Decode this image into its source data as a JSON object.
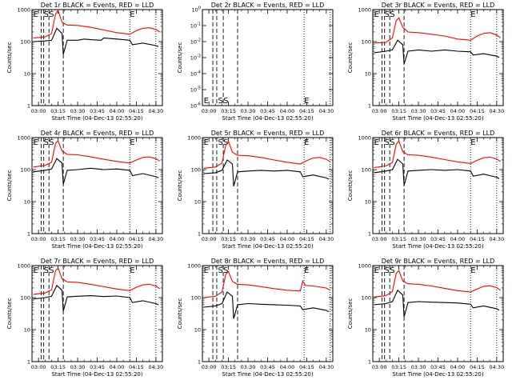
{
  "colors": {
    "events": "#000000",
    "lld": "#ff0000",
    "background": "#ffffff"
  },
  "xlabel": "Start Time (04-Dec-13 02:55:20)",
  "ylabel": "Counts/sec",
  "x_ticks": [
    "03:00",
    "03:15",
    "03:30",
    "03:45",
    "04:00",
    "04:15",
    "04:30"
  ],
  "y_ticks_counts": [
    "1",
    "10",
    "100",
    "1000"
  ],
  "y_ticks_det2": [
    "10^0",
    "10^-1",
    "10^-2",
    "10^-3",
    "10^-4",
    "10^-5",
    "10^-6"
  ],
  "chart_data": [
    {
      "type": "line",
      "title": "Det 1r BLACK = Events, RED = LLD",
      "ylim": [
        1,
        1000
      ],
      "yscale": "log",
      "xlim": [
        "02:55",
        "04:35"
      ],
      "event_markers": [
        {
          "label": "E",
          "x": "02:56"
        },
        {
          "label": "S",
          "x": "03:04"
        },
        {
          "label": "S",
          "x": "03:08"
        },
        {
          "label": "E",
          "x": "04:10"
        }
      ],
      "dashed_lines": [
        "03:02",
        "03:04",
        "03:08",
        "03:19"
      ],
      "dotted_lines": [
        "04:10",
        "04:30"
      ],
      "series": [
        {
          "name": "Events",
          "x": [
            "02:56",
            "03:05",
            "03:10",
            "03:14",
            "03:18",
            "03:19",
            "03:22",
            "03:30",
            "03:35",
            "03:40",
            "03:48",
            "03:50",
            "04:00",
            "04:10",
            "04:12",
            "04:20",
            "04:30",
            "04:32"
          ],
          "values": [
            100,
            105,
            110,
            260,
            180,
            40,
            110,
            110,
            120,
            115,
            110,
            130,
            120,
            110,
            80,
            90,
            75,
            70
          ]
        },
        {
          "name": "LLD",
          "x": [
            "02:56",
            "03:05",
            "03:10",
            "03:13",
            "03:15",
            "03:18",
            "03:22",
            "03:30",
            "03:40",
            "03:50",
            "04:00",
            "04:10",
            "04:15",
            "04:20",
            "04:25",
            "04:30",
            "04:33"
          ],
          "values": [
            130,
            140,
            180,
            700,
            950,
            400,
            330,
            320,
            280,
            230,
            190,
            170,
            220,
            260,
            270,
            240,
            200
          ]
        }
      ]
    },
    {
      "type": "line",
      "title": "Det 2r BLACK = Events, RED = LLD",
      "ylim": [
        1e-06,
        1
      ],
      "yscale": "log",
      "xlim": [
        "02:55",
        "04:35"
      ],
      "event_markers": [
        {
          "label": "E",
          "x": "02:56"
        },
        {
          "label": "S",
          "x": "03:07"
        },
        {
          "label": "S",
          "x": "03:11"
        },
        {
          "label": "E",
          "x": "04:13"
        }
      ],
      "dashed_lines": [
        "03:03",
        "03:06",
        "03:11",
        "03:22"
      ],
      "dotted_lines": [
        "04:13",
        "04:33"
      ],
      "series": []
    },
    {
      "type": "line",
      "title": "Det 3r BLACK = Events, RED = LLD",
      "ylim": [
        1,
        1000
      ],
      "yscale": "log",
      "xlim": [
        "02:55",
        "04:35"
      ],
      "event_markers": [
        {
          "label": "E",
          "x": "02:56"
        },
        {
          "label": "S",
          "x": "03:04"
        },
        {
          "label": "S",
          "x": "03:08"
        },
        {
          "label": "E",
          "x": "04:10"
        }
      ],
      "dashed_lines": [
        "03:02",
        "03:04",
        "03:08",
        "03:19"
      ],
      "dotted_lines": [
        "04:10",
        "04:30"
      ],
      "series": [
        {
          "name": "Events",
          "x": [
            "02:56",
            "03:05",
            "03:10",
            "03:14",
            "03:18",
            "03:19",
            "03:22",
            "03:30",
            "03:40",
            "03:50",
            "04:00",
            "04:10",
            "04:12",
            "04:20",
            "04:30",
            "04:32"
          ],
          "values": [
            45,
            50,
            55,
            110,
            80,
            20,
            50,
            55,
            50,
            55,
            50,
            48,
            38,
            42,
            35,
            32
          ]
        },
        {
          "name": "LLD",
          "x": [
            "02:56",
            "03:05",
            "03:10",
            "03:13",
            "03:15",
            "03:18",
            "03:22",
            "03:30",
            "03:40",
            "03:50",
            "04:00",
            "04:10",
            "04:15",
            "04:20",
            "04:25",
            "04:30",
            "04:33"
          ],
          "values": [
            90,
            95,
            130,
            450,
            550,
            280,
            200,
            190,
            170,
            150,
            120,
            110,
            150,
            180,
            190,
            160,
            130
          ]
        }
      ]
    },
    {
      "type": "line",
      "title": "Det 4r BLACK = Events, RED = LLD",
      "ylim": [
        1,
        1000
      ],
      "yscale": "log",
      "xlim": [
        "02:55",
        "04:35"
      ],
      "event_markers": [
        {
          "label": "E",
          "x": "02:56"
        },
        {
          "label": "S",
          "x": "03:04"
        },
        {
          "label": "S",
          "x": "03:08"
        },
        {
          "label": "E",
          "x": "04:10"
        }
      ],
      "dashed_lines": [
        "03:02",
        "03:04",
        "03:08",
        "03:19"
      ],
      "dotted_lines": [
        "04:10",
        "04:30"
      ],
      "series": [
        {
          "name": "Events",
          "x": [
            "02:56",
            "03:05",
            "03:10",
            "03:14",
            "03:18",
            "03:19",
            "03:22",
            "03:30",
            "03:40",
            "03:50",
            "04:00",
            "04:10",
            "04:12",
            "04:20",
            "04:30",
            "04:32"
          ],
          "values": [
            85,
            95,
            105,
            220,
            160,
            35,
            95,
            100,
            110,
            100,
            105,
            95,
            65,
            75,
            60,
            55
          ]
        },
        {
          "name": "LLD",
          "x": [
            "02:56",
            "03:05",
            "03:10",
            "03:13",
            "03:15",
            "03:18",
            "03:22",
            "03:30",
            "03:40",
            "03:50",
            "04:00",
            "04:10",
            "04:15",
            "04:20",
            "04:25",
            "04:30",
            "04:33"
          ],
          "values": [
            120,
            135,
            170,
            650,
            800,
            380,
            300,
            290,
            250,
            210,
            180,
            160,
            200,
            240,
            250,
            220,
            185
          ]
        }
      ]
    },
    {
      "type": "line",
      "title": "Det 5r BLACK = Events, RED = LLD",
      "ylim": [
        1,
        1000
      ],
      "yscale": "log",
      "xlim": [
        "02:55",
        "04:35"
      ],
      "event_markers": [
        {
          "label": "E",
          "x": "02:56"
        },
        {
          "label": "S",
          "x": "03:07"
        },
        {
          "label": "S",
          "x": "03:11"
        },
        {
          "label": "E",
          "x": "04:13"
        }
      ],
      "dashed_lines": [
        "03:03",
        "03:06",
        "03:11",
        "03:22"
      ],
      "dotted_lines": [
        "04:13",
        "04:33"
      ],
      "series": [
        {
          "name": "Events",
          "x": [
            "02:56",
            "03:05",
            "03:10",
            "03:14",
            "03:18",
            "03:19",
            "03:22",
            "03:30",
            "03:40",
            "03:50",
            "04:00",
            "04:10",
            "04:12",
            "04:20",
            "04:30",
            "04:32"
          ],
          "values": [
            75,
            80,
            95,
            200,
            150,
            30,
            85,
            90,
            95,
            90,
            95,
            85,
            60,
            68,
            55,
            50
          ]
        },
        {
          "name": "LLD",
          "x": [
            "02:56",
            "03:05",
            "03:10",
            "03:13",
            "03:15",
            "03:18",
            "03:22",
            "03:30",
            "03:40",
            "03:50",
            "04:00",
            "04:10",
            "04:15",
            "04:20",
            "04:25",
            "04:30",
            "04:33"
          ],
          "values": [
            110,
            120,
            160,
            600,
            750,
            350,
            280,
            270,
            240,
            200,
            170,
            150,
            190,
            230,
            240,
            210,
            175
          ]
        }
      ]
    },
    {
      "type": "line",
      "title": "Det 6r BLACK = Events, RED = LLD",
      "ylim": [
        1,
        1000
      ],
      "yscale": "log",
      "xlim": [
        "02:55",
        "04:35"
      ],
      "event_markers": [
        {
          "label": "E",
          "x": "02:56"
        },
        {
          "label": "S",
          "x": "03:04"
        },
        {
          "label": "S",
          "x": "03:08"
        },
        {
          "label": "E",
          "x": "04:10"
        }
      ],
      "dashed_lines": [
        "03:02",
        "03:04",
        "03:08",
        "03:19"
      ],
      "dotted_lines": [
        "04:10",
        "04:30"
      ],
      "series": [
        {
          "name": "Events",
          "x": [
            "02:56",
            "03:05",
            "03:10",
            "03:14",
            "03:18",
            "03:19",
            "03:22",
            "03:30",
            "03:40",
            "03:50",
            "04:00",
            "04:10",
            "04:12",
            "04:20",
            "04:30",
            "04:32"
          ],
          "values": [
            80,
            90,
            100,
            210,
            150,
            32,
            90,
            95,
            100,
            95,
            100,
            90,
            62,
            72,
            58,
            52
          ]
        },
        {
          "name": "LLD",
          "x": [
            "02:56",
            "03:05",
            "03:10",
            "03:13",
            "03:15",
            "03:18",
            "03:22",
            "03:30",
            "03:40",
            "03:50",
            "04:00",
            "04:10",
            "04:15",
            "04:20",
            "04:25",
            "04:30",
            "04:33"
          ],
          "values": [
            115,
            130,
            165,
            620,
            780,
            360,
            290,
            280,
            245,
            205,
            175,
            155,
            195,
            235,
            245,
            215,
            180
          ]
        }
      ]
    },
    {
      "type": "line",
      "title": "Det 7r BLACK = Events, RED = LLD",
      "ylim": [
        1,
        1000
      ],
      "yscale": "log",
      "xlim": [
        "02:55",
        "04:35"
      ],
      "event_markers": [
        {
          "label": "E",
          "x": "02:56"
        },
        {
          "label": "S",
          "x": "03:04"
        },
        {
          "label": "S",
          "x": "03:08"
        },
        {
          "label": "E",
          "x": "04:10"
        }
      ],
      "dashed_lines": [
        "03:02",
        "03:04",
        "03:08",
        "03:19"
      ],
      "dotted_lines": [
        "04:10",
        "04:30"
      ],
      "series": [
        {
          "name": "Events",
          "x": [
            "02:56",
            "03:05",
            "03:10",
            "03:14",
            "03:18",
            "03:19",
            "03:22",
            "03:30",
            "03:40",
            "03:50",
            "04:00",
            "04:10",
            "04:12",
            "04:20",
            "04:30",
            "04:32"
          ],
          "values": [
            90,
            100,
            110,
            240,
            170,
            38,
            105,
            110,
            115,
            108,
            112,
            100,
            70,
            80,
            65,
            60
          ]
        },
        {
          "name": "LLD",
          "x": [
            "02:56",
            "03:05",
            "03:10",
            "03:13",
            "03:15",
            "03:18",
            "03:22",
            "03:30",
            "03:40",
            "03:50",
            "04:00",
            "04:10",
            "04:15",
            "04:20",
            "04:25",
            "04:30",
            "04:33"
          ],
          "values": [
            125,
            140,
            175,
            680,
            850,
            390,
            310,
            300,
            260,
            220,
            185,
            165,
            210,
            250,
            260,
            230,
            190
          ]
        }
      ]
    },
    {
      "type": "line",
      "title": "Det 8r BLACK = Events, RED = LLD",
      "ylim": [
        1,
        1000
      ],
      "yscale": "log",
      "xlim": [
        "02:55",
        "04:35"
      ],
      "event_markers": [
        {
          "label": "E",
          "x": "02:56"
        },
        {
          "label": "S",
          "x": "03:07"
        },
        {
          "label": "S",
          "x": "03:11"
        },
        {
          "label": "E",
          "x": "04:13"
        }
      ],
      "dashed_lines": [
        "03:03",
        "03:06",
        "03:11",
        "03:22"
      ],
      "dotted_lines": [
        "04:13",
        "04:33"
      ],
      "series": [
        {
          "name": "Events",
          "x": [
            "02:56",
            "03:05",
            "03:10",
            "03:14",
            "03:18",
            "03:19",
            "03:22",
            "03:30",
            "03:40",
            "03:50",
            "04:00",
            "04:10",
            "04:12",
            "04:20",
            "04:30",
            "04:32"
          ],
          "values": [
            50,
            55,
            65,
            150,
            110,
            22,
            60,
            65,
            62,
            60,
            58,
            55,
            42,
            48,
            40,
            36
          ]
        },
        {
          "name": "LLD",
          "x": [
            "02:56",
            "03:05",
            "03:10",
            "03:13",
            "03:15",
            "03:18",
            "03:22",
            "03:30",
            "03:40",
            "03:50",
            "04:00",
            "04:10",
            "04:12",
            "04:14",
            "04:20",
            "04:30",
            "04:33"
          ],
          "values": [
            100,
            110,
            150,
            550,
            650,
            320,
            260,
            250,
            220,
            190,
            170,
            160,
            330,
            240,
            230,
            200,
            170
          ]
        }
      ]
    },
    {
      "type": "line",
      "title": "Det 9r BLACK = Events, RED = LLD",
      "ylim": [
        1,
        1000
      ],
      "yscale": "log",
      "xlim": [
        "02:55",
        "04:35"
      ],
      "event_markers": [
        {
          "label": "E",
          "x": "02:56"
        },
        {
          "label": "S",
          "x": "03:04"
        },
        {
          "label": "S",
          "x": "03:08"
        },
        {
          "label": "E",
          "x": "04:10"
        }
      ],
      "dashed_lines": [
        "03:02",
        "03:04",
        "03:08",
        "03:19"
      ],
      "dotted_lines": [
        "04:10",
        "04:30"
      ],
      "series": [
        {
          "name": "Events",
          "x": [
            "02:56",
            "03:05",
            "03:10",
            "03:14",
            "03:18",
            "03:19",
            "03:22",
            "03:30",
            "03:40",
            "03:50",
            "04:00",
            "04:10",
            "04:12",
            "04:20",
            "04:30",
            "04:32"
          ],
          "values": [
            60,
            65,
            75,
            170,
            120,
            25,
            70,
            75,
            72,
            70,
            68,
            62,
            48,
            55,
            45,
            40
          ]
        },
        {
          "name": "LLD",
          "x": [
            "02:56",
            "03:05",
            "03:10",
            "03:13",
            "03:15",
            "03:18",
            "03:22",
            "03:30",
            "03:40",
            "03:50",
            "04:00",
            "04:10",
            "04:15",
            "04:20",
            "04:25",
            "04:30",
            "04:33"
          ],
          "values": [
            105,
            115,
            155,
            580,
            700,
            330,
            270,
            260,
            230,
            195,
            165,
            150,
            185,
            225,
            235,
            205,
            170
          ]
        }
      ]
    }
  ]
}
